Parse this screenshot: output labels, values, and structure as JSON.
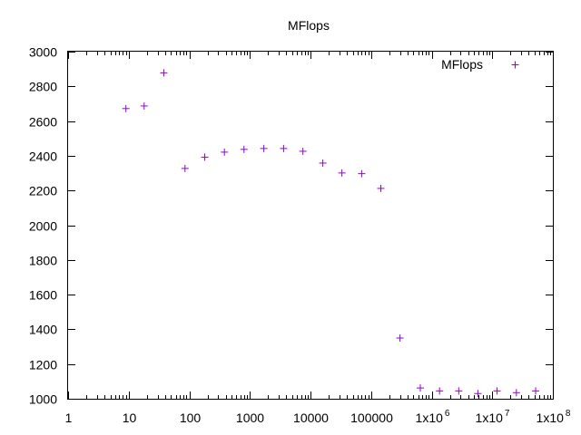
{
  "chart_data": {
    "type": "scatter",
    "title": "MFlops",
    "xlabel": "",
    "ylabel": "",
    "xscale": "log",
    "xlim": [
      1,
      100000000
    ],
    "ylim": [
      1000,
      3000
    ],
    "grid": false,
    "legend_position": "top-right",
    "x_ticks": [
      {
        "value": 1,
        "label": "1"
      },
      {
        "value": 10,
        "label": "10"
      },
      {
        "value": 100,
        "label": "100"
      },
      {
        "value": 1000,
        "label": "1000"
      },
      {
        "value": 10000,
        "label": "10000"
      },
      {
        "value": 100000,
        "label": "100000"
      },
      {
        "value": 1000000,
        "label": "1x10",
        "exp": "6"
      },
      {
        "value": 10000000,
        "label": "1x10",
        "exp": "7"
      },
      {
        "value": 100000000,
        "label": "1x10",
        "exp": "8"
      }
    ],
    "y_ticks": [
      1000,
      1200,
      1400,
      1600,
      1800,
      2000,
      2200,
      2400,
      2600,
      2800,
      3000
    ],
    "series": [
      {
        "name": "MFlops",
        "color": "#9400d3",
        "marker": "plus",
        "points": [
          {
            "x": 9,
            "y": 2672
          },
          {
            "x": 18,
            "y": 2687
          },
          {
            "x": 38,
            "y": 2878
          },
          {
            "x": 85,
            "y": 2327
          },
          {
            "x": 180,
            "y": 2392
          },
          {
            "x": 380,
            "y": 2421
          },
          {
            "x": 800,
            "y": 2437
          },
          {
            "x": 1700,
            "y": 2442
          },
          {
            "x": 3600,
            "y": 2442
          },
          {
            "x": 7500,
            "y": 2426
          },
          {
            "x": 16000,
            "y": 2358
          },
          {
            "x": 33000,
            "y": 2301
          },
          {
            "x": 70000,
            "y": 2297
          },
          {
            "x": 145000,
            "y": 2212
          },
          {
            "x": 300000,
            "y": 1350
          },
          {
            "x": 650000,
            "y": 1062
          },
          {
            "x": 1350000,
            "y": 1045
          },
          {
            "x": 2800000,
            "y": 1045
          },
          {
            "x": 5800000,
            "y": 1030
          },
          {
            "x": 12000000,
            "y": 1045
          },
          {
            "x": 25000000,
            "y": 1035
          },
          {
            "x": 52000000,
            "y": 1045
          }
        ]
      }
    ]
  }
}
